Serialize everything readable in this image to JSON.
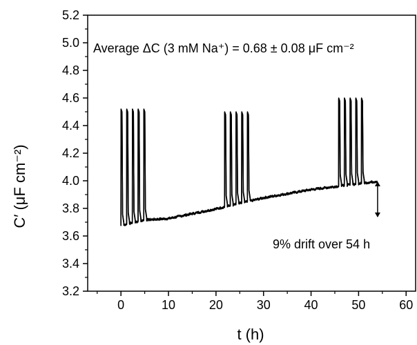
{
  "chart_data": {
    "type": "line",
    "title": "",
    "xlabel": "t (h)",
    "ylabel": "C′ (μF cm⁻²)",
    "xlim": [
      -7,
      62
    ],
    "ylim": [
      3.2,
      5.2
    ],
    "xticks": [
      0,
      10,
      20,
      30,
      40,
      50,
      60
    ],
    "yticks": [
      3.2,
      3.4,
      3.6,
      3.8,
      4.0,
      4.2,
      4.4,
      4.6,
      4.8,
      5.0,
      5.2
    ],
    "grid": false,
    "legend": "none",
    "line_color": "#000000",
    "annotations": {
      "average": "Average ΔC (3 mM Na⁺) = 0.68 ± 0.08 μF cm⁻²",
      "drift": "9% drift over 54 h"
    },
    "drift_arrow": {
      "x": 54,
      "y_from": 4.0,
      "y_to": 3.73
    },
    "series": [
      {
        "baseline": [
          [
            0,
            3.68
          ],
          [
            5,
            3.72
          ],
          [
            10,
            3.73
          ],
          [
            20,
            3.8
          ],
          [
            30,
            3.88
          ],
          [
            40,
            3.94
          ],
          [
            54,
            4.0
          ]
        ],
        "pulses": [
          {
            "x": 0.0,
            "peak": 4.52
          },
          {
            "x": 1.2,
            "peak": 4.52
          },
          {
            "x": 2.4,
            "peak": 4.52
          },
          {
            "x": 3.6,
            "peak": 4.52
          },
          {
            "x": 4.8,
            "peak": 4.52
          },
          {
            "x": 21.8,
            "peak": 4.5
          },
          {
            "x": 23.0,
            "peak": 4.5
          },
          {
            "x": 24.2,
            "peak": 4.5
          },
          {
            "x": 25.4,
            "peak": 4.5
          },
          {
            "x": 26.6,
            "peak": 4.5
          },
          {
            "x": 45.8,
            "peak": 4.6
          },
          {
            "x": 47.0,
            "peak": 4.6
          },
          {
            "x": 48.2,
            "peak": 4.6
          },
          {
            "x": 49.4,
            "peak": 4.6
          },
          {
            "x": 50.6,
            "peak": 4.6
          }
        ]
      }
    ]
  }
}
